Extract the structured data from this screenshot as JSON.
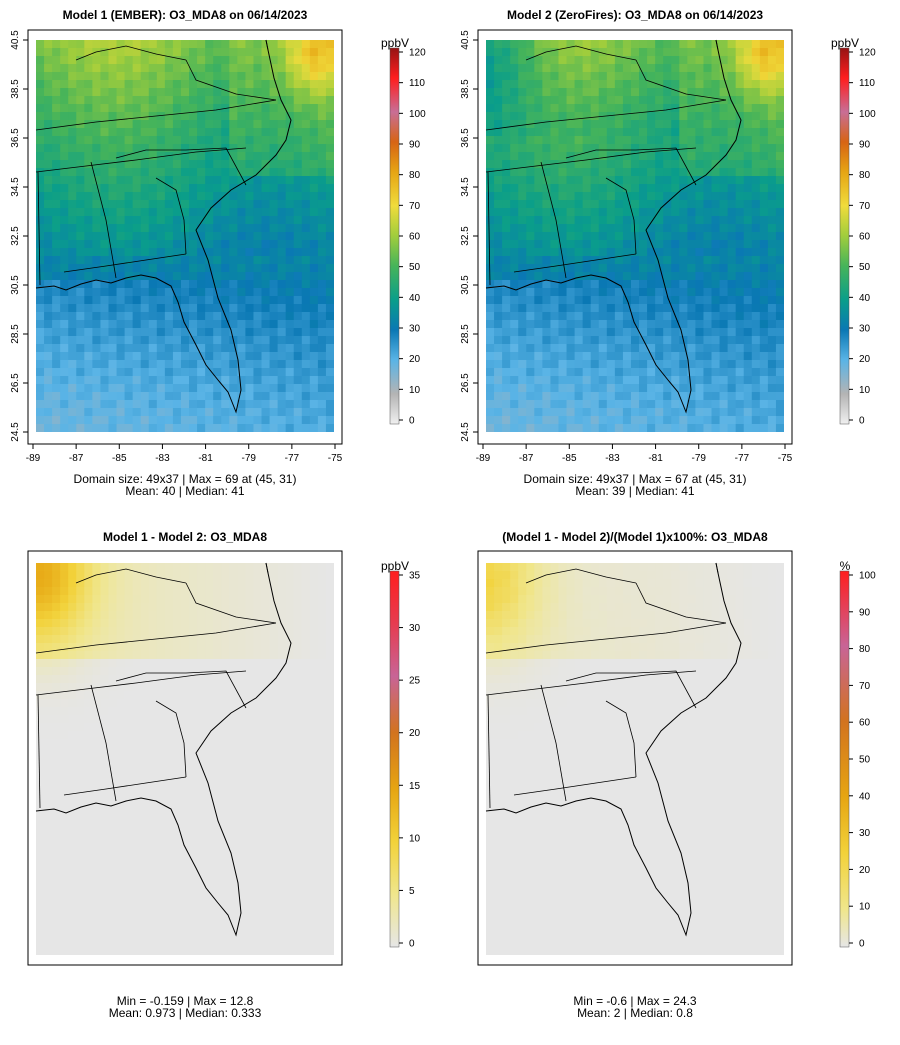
{
  "panels": [
    {
      "id": "model1",
      "title": "Model 1 (EMBER): O3_MDA8 on 06/14/2023",
      "unit": "ppbV",
      "colorbar": {
        "min": 0,
        "max": 120,
        "ticks": [
          "0",
          "10",
          "20",
          "30",
          "40",
          "50",
          "60",
          "70",
          "80",
          "90",
          "100",
          "110",
          "120"
        ]
      },
      "show_axes": true,
      "stats_line1": "Domain size: 49x37 | Max = 69 at (45, 31)",
      "stats_line2": "Mean: 40 |  Median: 41",
      "field": "abs1"
    },
    {
      "id": "model2",
      "title": "Model 2 (ZeroFires): O3_MDA8 on 06/14/2023",
      "unit": "ppbV",
      "colorbar": {
        "min": 0,
        "max": 120,
        "ticks": [
          "0",
          "10",
          "20",
          "30",
          "40",
          "50",
          "60",
          "70",
          "80",
          "90",
          "100",
          "110",
          "120"
        ]
      },
      "show_axes": true,
      "stats_line1": "Domain size: 49x37 | Max = 67 at (45, 31)",
      "stats_line2": "Mean: 39 |  Median: 41",
      "field": "abs2"
    },
    {
      "id": "diff",
      "title": "Model 1 - Model 2: O3_MDA8",
      "unit": "ppbV",
      "colorbar": {
        "min": 0,
        "max": 35,
        "ticks": [
          "0",
          "5",
          "10",
          "15",
          "20",
          "25",
          "30",
          "35"
        ]
      },
      "show_axes": false,
      "stats_line1": "Min = -0.159 | Max = 12.8",
      "stats_line2": "Mean: 0.973 |  Median: 0.333",
      "field": "diff"
    },
    {
      "id": "pctdiff",
      "title": "(Model 1 - Model 2)/(Model 1)x100%: O3_MDA8",
      "unit": "%",
      "colorbar": {
        "min": 0,
        "max": 100,
        "ticks": [
          "0",
          "10",
          "20",
          "30",
          "40",
          "50",
          "60",
          "70",
          "80",
          "90",
          "100"
        ]
      },
      "show_axes": false,
      "stats_line1": "Min = -0.6 | Max = 24.3",
      "stats_line2": "Mean: 2 |  Median: 0.8",
      "field": "pct"
    }
  ],
  "axes": {
    "x_ticks": [
      "-89",
      "-87",
      "-85",
      "-83",
      "-81",
      "-79",
      "-77",
      "-75"
    ],
    "y_ticks": [
      "24.5",
      "26.5",
      "28.5",
      "30.5",
      "32.5",
      "34.5",
      "36.5",
      "38.5",
      "40.5"
    ]
  },
  "colors": {
    "abs_scale": [
      "#e6e6e6",
      "#9a9a9a",
      "#55b0e6",
      "#0a78b4",
      "#0a9e8a",
      "#7cc350",
      "#f0dc3c",
      "#e59b10",
      "#d76414",
      "#c86496",
      "#ff1e1e",
      "#9b1b1b"
    ],
    "diff_scale": [
      "#e6e6e6",
      "#f0e68c",
      "#f2d23a",
      "#e6a512",
      "#d2691e",
      "#c86496",
      "#ff1e1e"
    ]
  }
}
